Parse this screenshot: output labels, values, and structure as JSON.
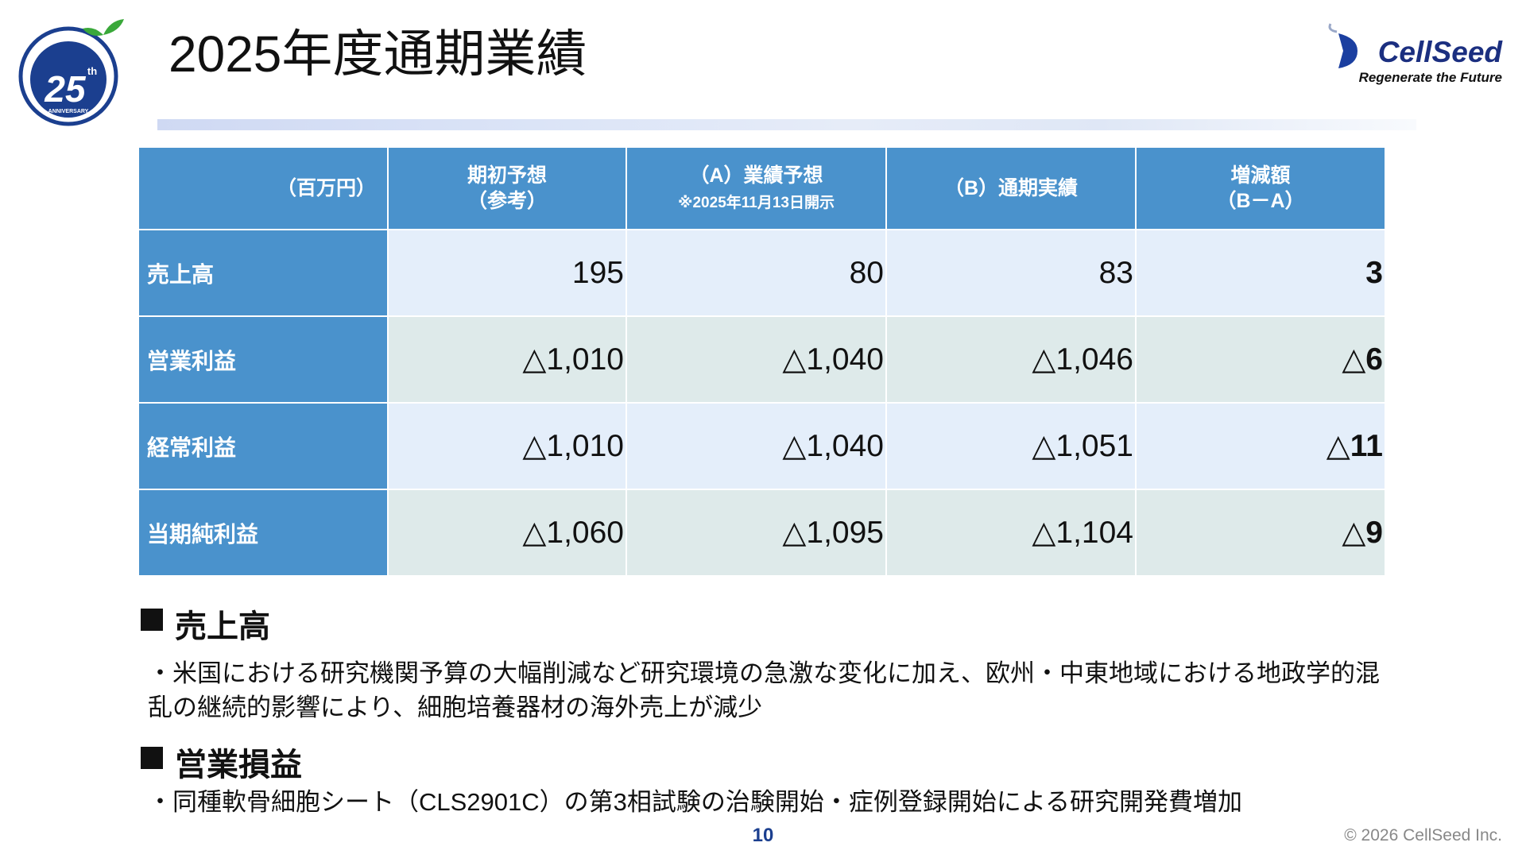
{
  "header": {
    "title": "2025年度通期業績",
    "logo_left": {
      "number": "25",
      "suffix": "th",
      "caption": "ANNIVERSARY"
    },
    "logo_right": {
      "name": "CellSeed",
      "tagline": "Regenerate the Future"
    }
  },
  "table": {
    "unit": "（百万円）",
    "columns": [
      {
        "lines": [
          "期初予想",
          "（参考）"
        ]
      },
      {
        "lines": [
          "（A）業績予想"
        ],
        "note": "※2025年11月13日開示"
      },
      {
        "lines": [
          "（B）通期実績"
        ]
      },
      {
        "lines": [
          "増減額",
          "（B－A）"
        ]
      }
    ],
    "rows": [
      [
        "売上高",
        "195",
        "80",
        "83",
        "3"
      ],
      [
        "営業利益",
        "△1,010",
        "△1,040",
        "△1,046",
        "△6"
      ],
      [
        "経常利益",
        "△1,010",
        "△1,040",
        "△1,051",
        "△11"
      ],
      [
        "当期純利益",
        "△1,060",
        "△1,095",
        "△1,104",
        "△9"
      ]
    ]
  },
  "sections": [
    {
      "heading": "売上高",
      "bullets": [
        "・米国における研究機関予算の大幅削減など研究環境の急激な変化に加え、欧州・中東地域における地政学的混乱の継続的影響により、細胞培養器材の海外売上が減少"
      ]
    },
    {
      "heading": "営業損益",
      "bullets": [
        "・同種軟骨細胞シート（CLS2901C）の第3相試験の治験開始・症例登録開始による研究開発費増加"
      ]
    }
  ],
  "footer": {
    "page": "10",
    "copyright": "© 2026 CellSeed Inc."
  }
}
